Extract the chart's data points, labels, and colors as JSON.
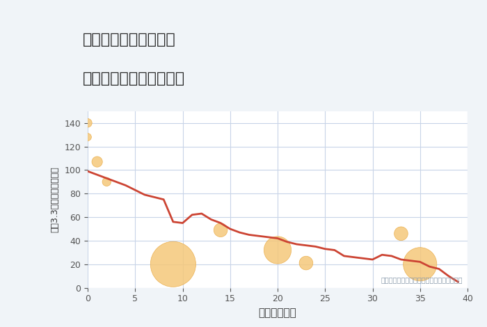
{
  "title_line1": "愛知県安城市根崎町の",
  "title_line2": "築年数別中古戸建て価格",
  "xlabel": "築年数（年）",
  "ylabel": "坪（3.3㎡）単価（万円）",
  "bg_color": "#f0f4f8",
  "plot_bg_color": "#ffffff",
  "line_color": "#cc4433",
  "line_x": [
    0,
    1,
    2,
    3,
    4,
    5,
    6,
    7,
    8,
    9,
    10,
    11,
    12,
    13,
    14,
    15,
    16,
    17,
    18,
    19,
    20,
    21,
    22,
    23,
    24,
    25,
    26,
    27,
    28,
    29,
    30,
    31,
    32,
    33,
    34,
    35,
    36,
    37,
    38,
    39
  ],
  "line_y": [
    99,
    96,
    93,
    90,
    87,
    83,
    79,
    77,
    75,
    56,
    55,
    62,
    63,
    58,
    55,
    50,
    47,
    45,
    44,
    43,
    42,
    39,
    37,
    36,
    35,
    33,
    32,
    27,
    26,
    25,
    24,
    28,
    27,
    24,
    23,
    22,
    18,
    16,
    10,
    5
  ],
  "scatter_x": [
    0,
    0,
    1,
    2,
    9,
    14,
    20,
    23,
    33,
    35
  ],
  "scatter_y": [
    140,
    128,
    107,
    90,
    20,
    49,
    32,
    21,
    46,
    20
  ],
  "scatter_sizes": [
    80,
    60,
    120,
    80,
    2200,
    200,
    800,
    200,
    200,
    1200
  ],
  "scatter_color": "#f5c87a",
  "scatter_edge_color": "#e8a840",
  "xlim": [
    0,
    40
  ],
  "ylim": [
    0,
    150
  ],
  "xticks": [
    0,
    5,
    10,
    15,
    20,
    25,
    30,
    35,
    40
  ],
  "yticks": [
    0,
    20,
    40,
    60,
    80,
    100,
    120,
    140
  ],
  "grid_color": "#c8d4e8",
  "annotation": "円の大きさは、取引のあった物件面積を示す",
  "annotation_color": "#8899aa"
}
